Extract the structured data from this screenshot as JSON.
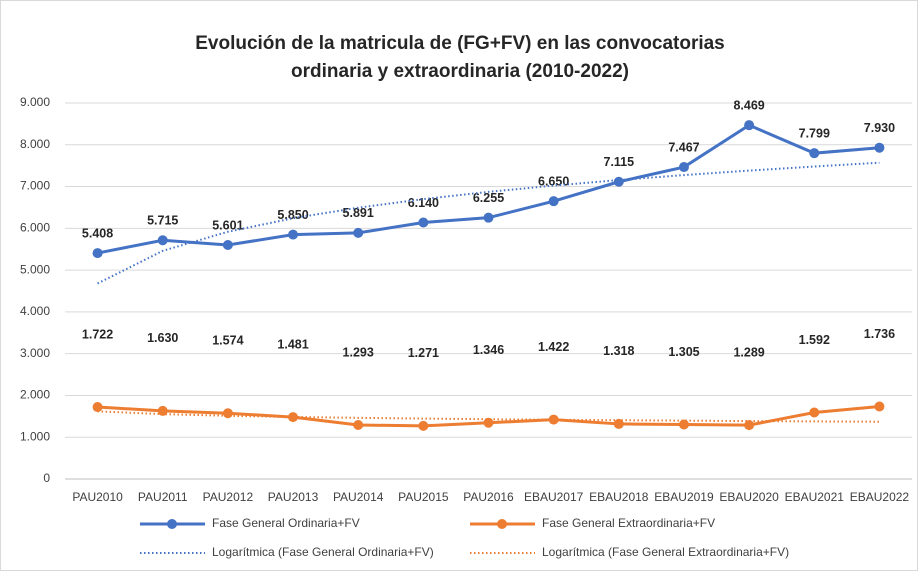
{
  "chart_data": {
    "type": "line",
    "title": "Evolución de la matricula de (FG+FV) en las convocatorias ordinaria y extraordinaria (2010-2022)",
    "categories": [
      "PAU2010",
      "PAU2011",
      "PAU2012",
      "PAU2013",
      "PAU2014",
      "PAU2015",
      "PAU2016",
      "EBAU2017",
      "EBAU2018",
      "EBAU2019",
      "EBAU2020",
      "EBAU2021",
      "EBAU2022"
    ],
    "series": [
      {
        "name": "Fase General Ordinaria+FV",
        "color": "#4472c4",
        "style": "solid",
        "values": [
          5408,
          5715,
          5601,
          5850,
          5891,
          6140,
          6255,
          6650,
          7115,
          7467,
          8469,
          7799,
          7930
        ],
        "value_labels": [
          "5.408",
          "5.715",
          "5.601",
          "5.850",
          "5.891",
          "6.140",
          "6.255",
          "6.650",
          "7.115",
          "7.467",
          "8.469",
          "7.799",
          "7.930"
        ]
      },
      {
        "name": "Fase General Extraordinaria+FV",
        "color": "#ed7d31",
        "style": "solid",
        "values": [
          1722,
          1630,
          1574,
          1481,
          1293,
          1271,
          1346,
          1422,
          1318,
          1305,
          1289,
          1592,
          1736
        ],
        "value_labels": [
          "1.722",
          "1.630",
          "1.574",
          "1.481",
          "1.293",
          "1.271",
          "1.346",
          "1.422",
          "1.318",
          "1.305",
          "1.289",
          "1.592",
          "1.736"
        ]
      },
      {
        "name": "Logarítmica (Fase General Ordinaria+FV)",
        "color": "#4472c4",
        "style": "dotted",
        "values": [
          4680,
          5461,
          5918,
          6242,
          6494,
          6700,
          6873,
          7023,
          7156,
          7275,
          7382,
          7480,
          7571
        ]
      },
      {
        "name": "Logarítmica (Fase General Extraordinaria+FV)",
        "color": "#ed7d31",
        "style": "dotted",
        "values": [
          1620,
          1553,
          1513,
          1485,
          1464,
          1446,
          1431,
          1418,
          1407,
          1397,
          1387,
          1379,
          1371
        ]
      }
    ],
    "ylim": [
      0,
      9000
    ],
    "yticks": [
      0,
      {
        "value": 1000,
        "label": "1.000"
      },
      {
        "value": 2000,
        "label": "2.000"
      },
      {
        "value": 3000,
        "label": "3.000"
      },
      {
        "value": 4000,
        "label": "4.000"
      },
      {
        "value": 5000,
        "label": "5.000"
      },
      {
        "value": 6000,
        "label": "6.000"
      },
      {
        "value": 7000,
        "label": "7.000"
      },
      {
        "value": 8000,
        "label": "8.000"
      },
      {
        "value": 9000,
        "label": "9.000"
      }
    ],
    "grid": true,
    "legend": "bottom"
  }
}
